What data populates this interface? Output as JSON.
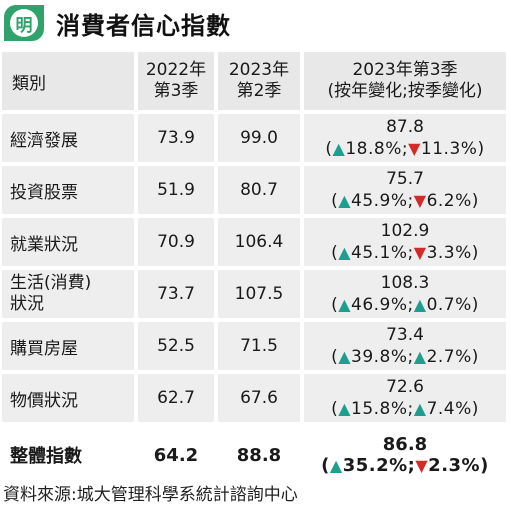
{
  "header": {
    "logo_text": "明",
    "title": "消費者信心指數"
  },
  "table": {
    "columns": {
      "category": "類別",
      "q2022_3_line1": "2022年",
      "q2022_3_line2": "第3季",
      "q2023_2_line1": "2023年",
      "q2023_2_line2": "第2季",
      "q2023_3_line1": "2023年第3季",
      "q2023_3_line2": "(按年變化;按季變化)"
    },
    "rows": [
      {
        "category": "經濟發展",
        "v2022q3": "73.9",
        "v2023q2": "99.0",
        "v2023q3": "87.8",
        "yoy_dir": "up",
        "yoy": "18.8%",
        "qoq_dir": "down",
        "qoq": "11.3%"
      },
      {
        "category": "投資股票",
        "v2022q3": "51.9",
        "v2023q2": "80.7",
        "v2023q3": "75.7",
        "yoy_dir": "up",
        "yoy": "45.9%",
        "qoq_dir": "down",
        "qoq": "6.2%"
      },
      {
        "category": "就業狀況",
        "v2022q3": "70.9",
        "v2023q2": "106.4",
        "v2023q3": "102.9",
        "yoy_dir": "up",
        "yoy": "45.1%",
        "qoq_dir": "down",
        "qoq": "3.3%"
      },
      {
        "category_line1": "生活(消費)",
        "category_line2": "狀況",
        "v2022q3": "73.7",
        "v2023q2": "107.5",
        "v2023q3": "108.3",
        "yoy_dir": "up",
        "yoy": "46.9%",
        "qoq_dir": "up",
        "qoq": "0.7%"
      },
      {
        "category": "購買房屋",
        "v2022q3": "52.5",
        "v2023q2": "71.5",
        "v2023q3": "73.4",
        "yoy_dir": "up",
        "yoy": "39.8%",
        "qoq_dir": "up",
        "qoq": "2.7%"
      },
      {
        "category": "物價狀況",
        "v2022q3": "62.7",
        "v2023q2": "67.6",
        "v2023q3": "72.6",
        "yoy_dir": "up",
        "yoy": "15.8%",
        "qoq_dir": "up",
        "qoq": "7.4%"
      }
    ],
    "total": {
      "category": "整體指數",
      "v2022q3": "64.2",
      "v2023q2": "88.8",
      "v2023q3": "86.8",
      "yoy_dir": "up",
      "yoy": "35.2%",
      "qoq_dir": "down",
      "qoq": "2.3%"
    },
    "symbols": {
      "up": "▲",
      "down": "▼",
      "open": "(",
      "sep": ";",
      "close": ")"
    }
  },
  "footer": {
    "source": "資料來源:城大管理科學系統計諮詢中心"
  },
  "colors": {
    "brand_green": "#2fa36b",
    "up_teal": "#1f9e8f",
    "down_red": "#d42a2a",
    "row_bg": "#eeeeee"
  }
}
